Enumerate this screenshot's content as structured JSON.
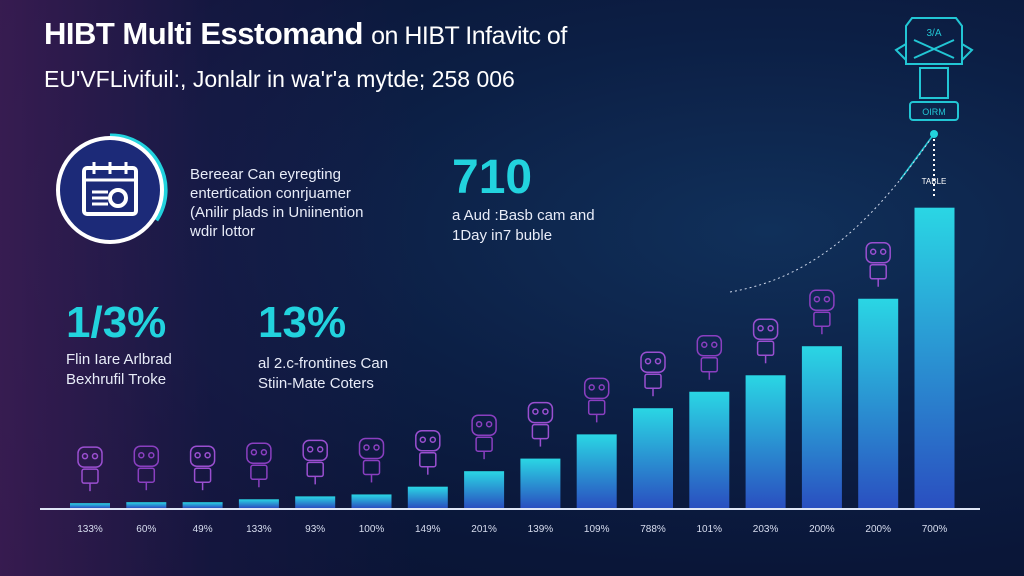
{
  "header": {
    "title_bold": "HIBT Multi Esstomand",
    "title_rest": "on HIBT Infavitc of",
    "subtitle": "EU'VFLivifuil:, Jonlalr in wa'r'a mytde; 258 006"
  },
  "feature": {
    "icon": "calendar-gear-icon",
    "text_lines": [
      "Bereear Can eyregting",
      "entertication conrjuamer",
      "(Anilir plads in Uniinention",
      "wdir lottor"
    ]
  },
  "stats": [
    {
      "value": "710",
      "lines": [
        "a Aud :Basb cam and",
        "1Day in7 buble"
      ]
    },
    {
      "value": "1/3%",
      "lines": [
        "Flin Iare Arlbrad",
        "Bexhrufil Troke"
      ]
    },
    {
      "value": "13%",
      "lines": [
        "al 2.c-frontines Can",
        "Stiin-Mate Coters"
      ]
    }
  ],
  "peak_label": "TABLE",
  "top_icon": {
    "name": "robot-chair-icon",
    "text_top": "3/A",
    "text_bottom": "OIRM"
  },
  "colors": {
    "bar_top": "#2ad6e4",
    "bar_bottom": "#2a4fc0",
    "accent": "#22d3de",
    "robot": "#8a3fc0"
  },
  "chart_data": {
    "type": "bar",
    "title": "",
    "xlabel": "",
    "ylabel": "",
    "categories": [
      "133%",
      "60%",
      "49%",
      "133%",
      "93%",
      "100%",
      "149%",
      "201%",
      "139%",
      "109%",
      "788%",
      "101%",
      "203%",
      "200%",
      "200%",
      "700%"
    ],
    "values": [
      5,
      6,
      6,
      9,
      12,
      14,
      22,
      38,
      51,
      76,
      103,
      120,
      137,
      167,
      216,
      310
    ],
    "ylim": [
      0,
      320
    ],
    "grid": false
  }
}
